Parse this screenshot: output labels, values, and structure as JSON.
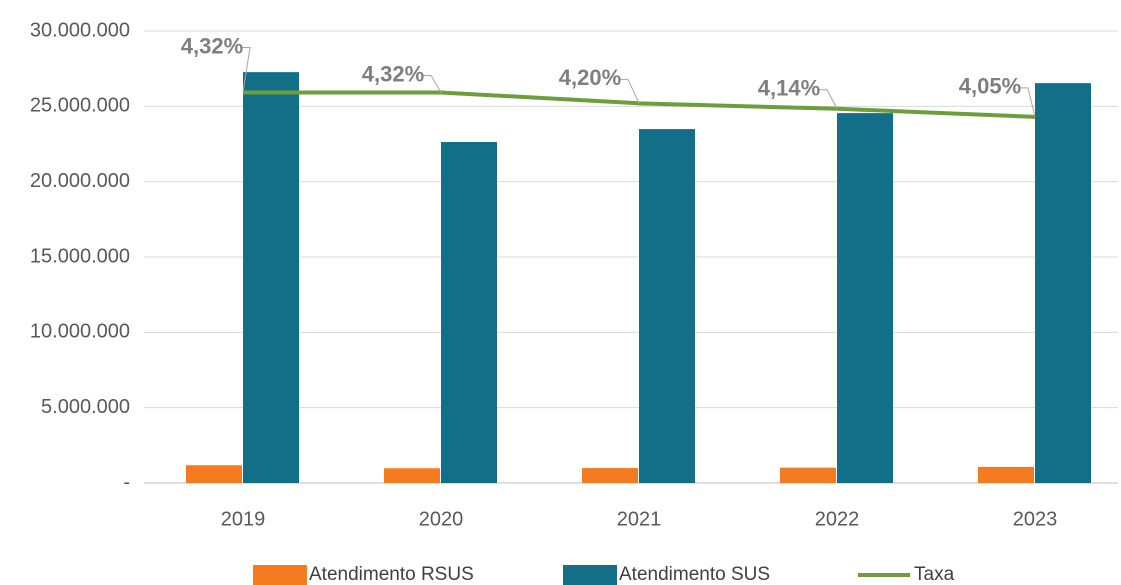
{
  "chart_data": {
    "type": "bar_line",
    "categories": [
      "2019",
      "2020",
      "2021",
      "2022",
      "2023"
    ],
    "series": [
      {
        "name": "Atendimento RSUS",
        "color": "#f47b20",
        "type": "bar",
        "values": [
          1180000,
          980000,
          990000,
          1020000,
          1070000
        ]
      },
      {
        "name": "Atendimento SUS",
        "color": "#136e87",
        "type": "bar",
        "values": [
          27270000,
          22630000,
          23490000,
          24550000,
          26540000
        ]
      },
      {
        "name": "Taxa",
        "color": "#6e9e3c",
        "type": "line",
        "axis": "y2",
        "values": [
          4.32,
          4.32,
          4.2,
          4.14,
          4.05
        ],
        "value_labels": [
          "4,32%",
          "4,32%",
          "4,20%",
          "4,14%",
          "4,05%"
        ]
      }
    ],
    "ylim": [
      0,
      30000000
    ],
    "yticks": [
      {
        "value": 0,
        "label": "-"
      },
      {
        "value": 5000000,
        "label": "5.000.000"
      },
      {
        "value": 10000000,
        "label": "10.000.000"
      },
      {
        "value": 15000000,
        "label": "15.000.000"
      },
      {
        "value": 20000000,
        "label": "20.000.000"
      },
      {
        "value": 25000000,
        "label": "25.000.000"
      },
      {
        "value": 30000000,
        "label": "30.000.000"
      }
    ],
    "y2lim": [
      0,
      5
    ],
    "grid": true,
    "legend": "bottom"
  }
}
